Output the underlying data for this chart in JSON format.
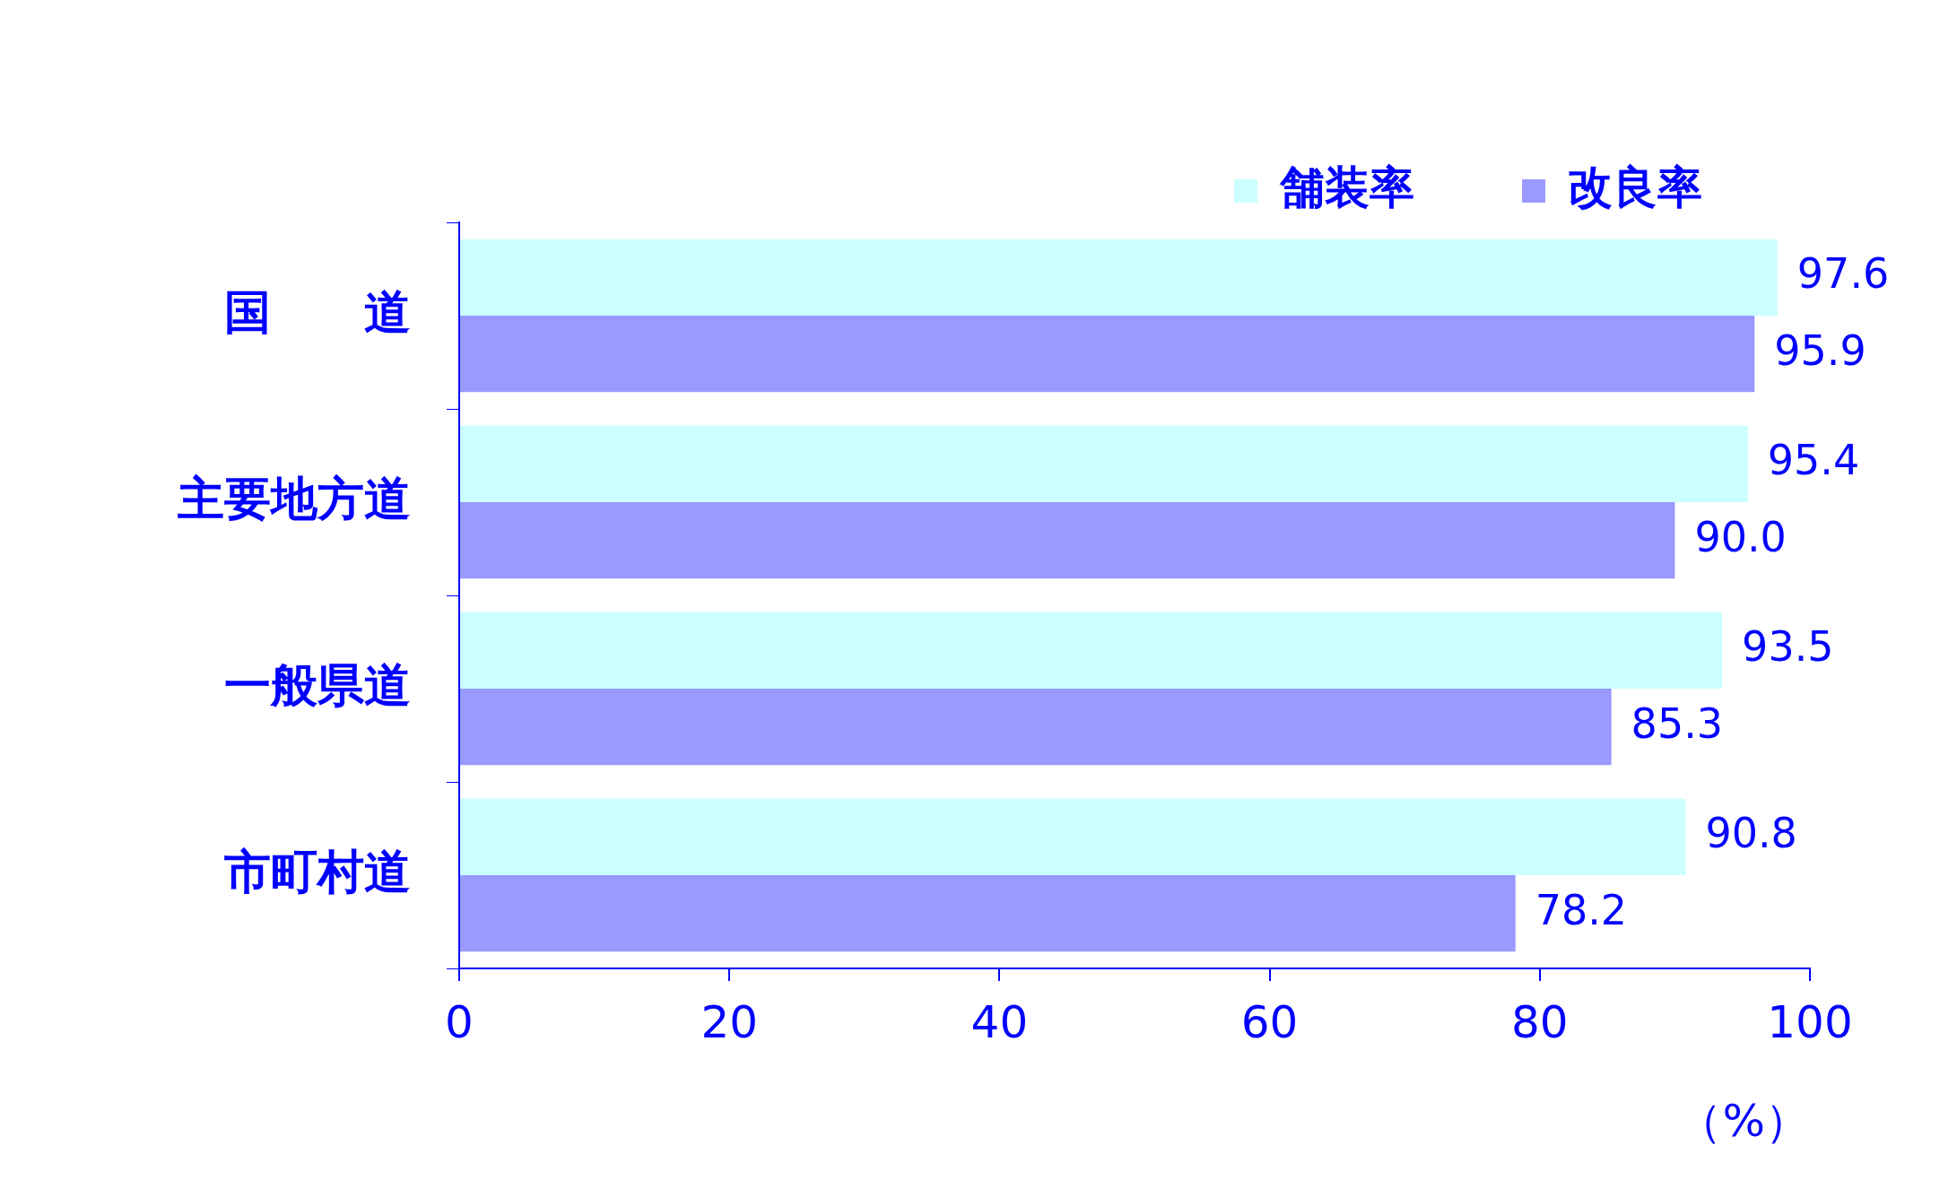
{
  "chart_data": {
    "type": "bar",
    "orientation": "horizontal",
    "categories": [
      "国　　道",
      "主要地方道",
      "一般県道",
      "市町村道"
    ],
    "series": [
      {
        "name": "舗装率",
        "color": "#ccffff",
        "values": [
          97.6,
          95.4,
          93.5,
          90.8
        ],
        "value_labels": [
          "97.6",
          "95.4",
          "93.5",
          "90.8"
        ]
      },
      {
        "name": "改良率",
        "color": "#9999ff",
        "values": [
          95.9,
          90.0,
          85.3,
          78.2
        ],
        "value_labels": [
          "95.9",
          "90.0",
          "85.3",
          "78.2"
        ]
      }
    ],
    "xlim": [
      0,
      100
    ],
    "xticks": [
      0,
      20,
      40,
      60,
      80,
      100
    ],
    "xlabel": "（%）",
    "legend": "top right",
    "grid": false
  }
}
